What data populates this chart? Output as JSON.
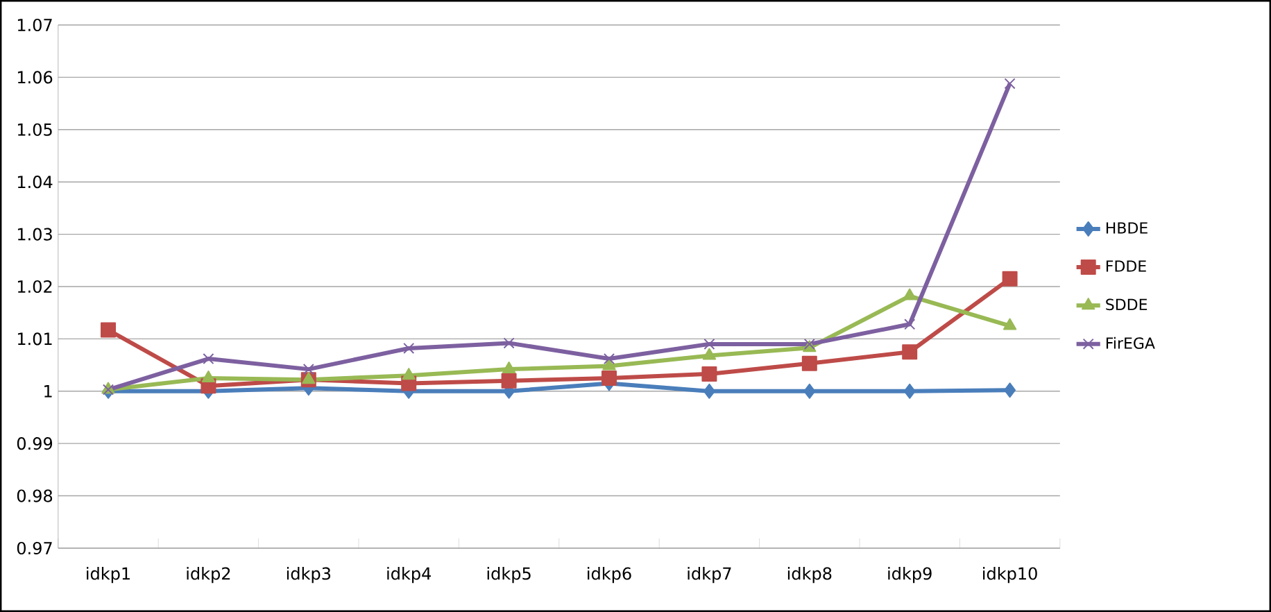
{
  "chart_data": {
    "type": "line",
    "categories": [
      "idkp1",
      "idkp2",
      "idkp3",
      "idkp4",
      "idkp5",
      "idkp6",
      "idkp7",
      "idkp8",
      "idkp9",
      "idkp10"
    ],
    "series": [
      {
        "name": "HBDE",
        "color": "#4a7ebb",
        "marker": "diamond",
        "values": [
          1.0,
          1.0,
          1.0006,
          1.0,
          1.0,
          1.0015,
          1.0,
          1.0,
          1.0,
          1.0002
        ]
      },
      {
        "name": "FDDE",
        "color": "#be4b48",
        "marker": "square",
        "values": [
          1.0117,
          1.001,
          1.0022,
          1.0015,
          1.002,
          1.0025,
          1.0033,
          1.0053,
          1.0075,
          1.0215
        ]
      },
      {
        "name": "SDDE",
        "color": "#98b954",
        "marker": "triangle",
        "values": [
          1.0003,
          1.0025,
          1.0022,
          1.003,
          1.0042,
          1.0048,
          1.0068,
          1.0083,
          1.0182,
          1.0125
        ]
      },
      {
        "name": "FirEGA",
        "color": "#7d60a0",
        "marker": "cross",
        "values": [
          1.0003,
          1.0062,
          1.0042,
          1.0082,
          1.0092,
          1.0062,
          1.009,
          1.009,
          1.0128,
          1.0588
        ]
      }
    ],
    "ylim": [
      0.97,
      1.07
    ],
    "yticks": [
      0.97,
      0.98,
      0.99,
      1,
      1.01,
      1.02,
      1.03,
      1.04,
      1.05,
      1.06,
      1.07
    ],
    "grid": "y",
    "legend": "right",
    "line_style": "solid"
  }
}
